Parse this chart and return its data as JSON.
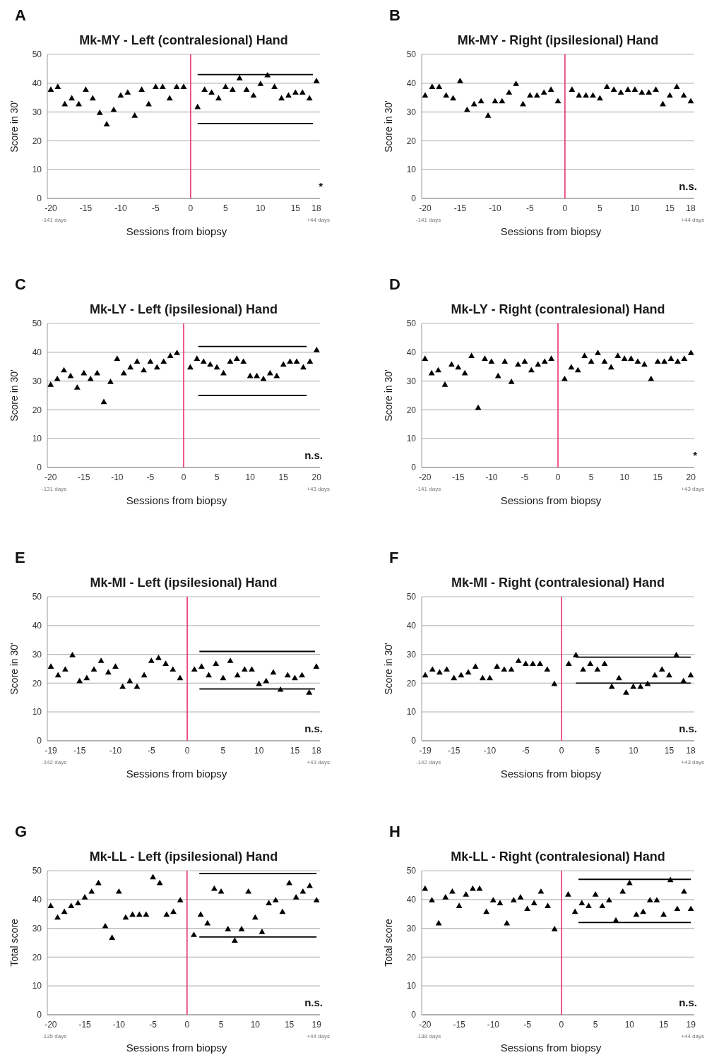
{
  "chart_data": [
    {
      "type": "scatter",
      "title": "Mk-MY - Left (contralesional) Hand",
      "xlabel": "Sessions from biopsy",
      "ylabel": "Score in 30'",
      "annotations": [
        "A",
        "-141 days",
        "+44 days",
        "*"
      ],
      "xlim": [
        -20.5,
        18.5
      ],
      "xticks": [
        -20,
        -15,
        -10,
        -5,
        0,
        5,
        10,
        15,
        18
      ],
      "ylim": [
        0,
        50
      ],
      "yticks": [
        0,
        10,
        20,
        30,
        40,
        50
      ],
      "grid": "y",
      "ref_lines": [
        {
          "axis": "x",
          "value": 0,
          "color": "#e8336d"
        }
      ],
      "series": [
        {
          "marker": "triangle",
          "color": "#000000",
          "x": [
            -20,
            -19,
            -18,
            -17,
            -16,
            -15,
            -14,
            -13,
            -12,
            -11,
            -10,
            -9,
            -8,
            -7,
            -6,
            -5,
            -4,
            -3,
            -2,
            -1,
            1,
            2,
            3,
            4,
            5,
            6,
            7,
            8,
            9,
            10,
            11,
            12,
            13,
            14,
            15,
            16,
            17,
            18
          ],
          "values": [
            38,
            39,
            33,
            35,
            33,
            38,
            35,
            30,
            26,
            31,
            36,
            37,
            29,
            38,
            33,
            39,
            39,
            35,
            39,
            39,
            32,
            38,
            37,
            35,
            39,
            38,
            42,
            38,
            36,
            40,
            43,
            39,
            35,
            36,
            37,
            37,
            35,
            41
          ]
        },
        {
          "type": "line",
          "color": "#000000",
          "x": [
            1,
            17.5
          ],
          "values": [
            43,
            43
          ]
        },
        {
          "type": "line",
          "color": "#000000",
          "x": [
            1,
            17.5
          ],
          "values": [
            26,
            26
          ]
        }
      ]
    },
    {
      "type": "scatter",
      "title": "Mk-MY - Right (ipsilesional) Hand",
      "xlabel": "Sessions from biopsy",
      "ylabel": "Score in 30'",
      "annotations": [
        "B",
        "-141 days",
        "+44 days",
        "n.s."
      ],
      "xlim": [
        -20.5,
        18.5
      ],
      "xticks": [
        -20,
        -15,
        -10,
        -5,
        0,
        5,
        10,
        15,
        18
      ],
      "ylim": [
        0,
        50
      ],
      "yticks": [
        0,
        10,
        20,
        30,
        40,
        50
      ],
      "grid": "y",
      "ref_lines": [
        {
          "axis": "x",
          "value": 0,
          "color": "#e8336d"
        }
      ],
      "series": [
        {
          "marker": "triangle",
          "color": "#000000",
          "x": [
            -20,
            -19,
            -18,
            -17,
            -16,
            -15,
            -14,
            -13,
            -12,
            -11,
            -10,
            -9,
            -8,
            -7,
            -6,
            -5,
            -4,
            -3,
            -2,
            -1,
            1,
            2,
            3,
            4,
            5,
            6,
            7,
            8,
            9,
            10,
            11,
            12,
            13,
            14,
            15,
            16,
            17,
            18
          ],
          "values": [
            36,
            39,
            39,
            36,
            35,
            41,
            31,
            33,
            34,
            29,
            34,
            34,
            37,
            40,
            33,
            36,
            36,
            37,
            38,
            34,
            38,
            36,
            36,
            36,
            35,
            39,
            38,
            37,
            38,
            38,
            37,
            37,
            38,
            33,
            36,
            39,
            36,
            34
          ]
        }
      ]
    },
    {
      "type": "scatter",
      "title": "Mk-LY - Left (ipsilesional) Hand",
      "xlabel": "Sessions from biopsy",
      "ylabel": "Score in 30'",
      "annotations": [
        "C",
        "-131 days",
        "+43 days",
        "n.s."
      ],
      "xlim": [
        -20.5,
        20.5
      ],
      "xticks": [
        -20,
        -15,
        -10,
        -5,
        0,
        5,
        10,
        15,
        20
      ],
      "ylim": [
        0,
        50
      ],
      "yticks": [
        0,
        10,
        20,
        30,
        40,
        50
      ],
      "grid": "y",
      "ref_lines": [
        {
          "axis": "x",
          "value": 0,
          "color": "#e8336d"
        }
      ],
      "series": [
        {
          "marker": "triangle",
          "color": "#000000",
          "x": [
            -20,
            -19,
            -18,
            -17,
            -16,
            -15,
            -14,
            -13,
            -12,
            -11,
            -10,
            -9,
            -8,
            -7,
            -6,
            -5,
            -4,
            -3,
            -2,
            -1,
            1,
            2,
            3,
            4,
            5,
            6,
            7,
            8,
            9,
            10,
            11,
            12,
            13,
            14,
            15,
            16,
            17,
            18,
            19,
            20
          ],
          "values": [
            29,
            31,
            34,
            32,
            28,
            33,
            31,
            33,
            23,
            30,
            38,
            33,
            35,
            37,
            34,
            37,
            35,
            37,
            39,
            40,
            35,
            38,
            37,
            36,
            35,
            33,
            37,
            38,
            37,
            32,
            32,
            31,
            33,
            32,
            36,
            37,
            37,
            35,
            37,
            41
          ]
        },
        {
          "type": "line",
          "color": "#000000",
          "x": [
            2.2,
            18.5
          ],
          "values": [
            42,
            42
          ]
        },
        {
          "type": "line",
          "color": "#000000",
          "x": [
            2.2,
            18.5
          ],
          "values": [
            25,
            25
          ]
        }
      ]
    },
    {
      "type": "scatter",
      "title": "Mk-LY - Right (contralesional) Hand",
      "xlabel": "Sessions from biopsy",
      "ylabel": "Score in 30'",
      "annotations": [
        "D",
        "-141 days",
        "+43 days",
        "*"
      ],
      "xlim": [
        -20.5,
        20.5
      ],
      "xticks": [
        -20,
        -15,
        -10,
        -5,
        0,
        5,
        10,
        15,
        20
      ],
      "ylim": [
        0,
        50
      ],
      "yticks": [
        0,
        10,
        20,
        30,
        40,
        50
      ],
      "grid": "y",
      "ref_lines": [
        {
          "axis": "x",
          "value": 0,
          "color": "#e8336d"
        }
      ],
      "series": [
        {
          "marker": "triangle",
          "color": "#000000",
          "x": [
            -20,
            -19,
            -18,
            -17,
            -16,
            -15,
            -14,
            -13,
            -12,
            -11,
            -10,
            -9,
            -8,
            -7,
            -6,
            -5,
            -4,
            -3,
            -2,
            -1,
            1,
            2,
            3,
            4,
            5,
            6,
            7,
            8,
            9,
            10,
            11,
            12,
            13,
            14,
            15,
            16,
            17,
            18,
            19,
            20
          ],
          "values": [
            38,
            33,
            34,
            29,
            36,
            35,
            33,
            39,
            21,
            38,
            37,
            32,
            37,
            30,
            36,
            37,
            34,
            36,
            37,
            38,
            31,
            35,
            34,
            39,
            37,
            40,
            37,
            35,
            39,
            38,
            38,
            37,
            36,
            31,
            37,
            37,
            38,
            37,
            38,
            40
          ]
        }
      ]
    },
    {
      "type": "scatter",
      "title": "Mk-MI - Left (ipsilesional) Hand",
      "xlabel": "Sessions from biopsy",
      "ylabel": "Score in 30'",
      "annotations": [
        "E",
        "-142 days",
        "+43 days",
        "n.s."
      ],
      "xlim": [
        -19.5,
        18.5
      ],
      "xticks": [
        -19,
        -15,
        -10,
        -5,
        0,
        5,
        10,
        15,
        18
      ],
      "ylim": [
        0,
        50
      ],
      "yticks": [
        0,
        10,
        20,
        30,
        40,
        50
      ],
      "grid": "y",
      "ref_lines": [
        {
          "axis": "x",
          "value": 0,
          "color": "#e8336d"
        }
      ],
      "series": [
        {
          "marker": "triangle",
          "color": "#000000",
          "x": [
            -19,
            -18,
            -17,
            -16,
            -15,
            -14,
            -13,
            -12,
            -11,
            -10,
            -9,
            -8,
            -7,
            -6,
            -5,
            -4,
            -3,
            -2,
            -1,
            1,
            2,
            3,
            4,
            5,
            6,
            7,
            8,
            9,
            10,
            11,
            12,
            13,
            14,
            15,
            16,
            17,
            18
          ],
          "values": [
            26,
            23,
            25,
            30,
            21,
            22,
            25,
            28,
            24,
            26,
            19,
            21,
            19,
            23,
            28,
            29,
            27,
            25,
            22,
            25,
            26,
            23,
            27,
            22,
            28,
            23,
            25,
            25,
            20,
            21,
            24,
            18,
            23,
            22,
            23,
            17,
            26
          ]
        },
        {
          "type": "line",
          "color": "#000000",
          "x": [
            1.7,
            17.8
          ],
          "values": [
            31,
            31
          ]
        },
        {
          "type": "line",
          "color": "#000000",
          "x": [
            1.7,
            17.8
          ],
          "values": [
            18,
            18
          ]
        }
      ]
    },
    {
      "type": "scatter",
      "title": "Mk-MI - Right (contralesional) Hand",
      "xlabel": "Sessions from biopsy",
      "ylabel": "Score in 30'",
      "annotations": [
        "F",
        "-142 days",
        "+43 days",
        "n.s."
      ],
      "xlim": [
        -19.5,
        18.5
      ],
      "xticks": [
        -19,
        -15,
        -10,
        -5,
        0,
        5,
        10,
        15,
        18
      ],
      "ylim": [
        0,
        50
      ],
      "yticks": [
        0,
        10,
        20,
        30,
        40,
        50
      ],
      "grid": "y",
      "ref_lines": [
        {
          "axis": "x",
          "value": 0,
          "color": "#e8336d"
        }
      ],
      "series": [
        {
          "marker": "triangle",
          "color": "#000000",
          "x": [
            -19,
            -18,
            -17,
            -16,
            -15,
            -14,
            -13,
            -12,
            -11,
            -10,
            -9,
            -8,
            -7,
            -6,
            -5,
            -4,
            -3,
            -2,
            -1,
            1,
            2,
            3,
            4,
            5,
            6,
            7,
            8,
            9,
            10,
            11,
            12,
            13,
            14,
            15,
            16,
            17,
            18
          ],
          "values": [
            23,
            25,
            24,
            25,
            22,
            23,
            24,
            26,
            22,
            22,
            26,
            25,
            25,
            28,
            27,
            27,
            27,
            25,
            20,
            27,
            30,
            25,
            27,
            25,
            27,
            19,
            22,
            17,
            19,
            19,
            20,
            23,
            25,
            23,
            30,
            21,
            23
          ]
        },
        {
          "type": "line",
          "color": "#000000",
          "x": [
            2,
            18
          ],
          "values": [
            29,
            29
          ]
        },
        {
          "type": "line",
          "color": "#000000",
          "x": [
            2,
            18
          ],
          "values": [
            20,
            20
          ]
        }
      ]
    },
    {
      "type": "scatter",
      "title": "Mk-LL - Left (ipsilesional) Hand",
      "xlabel": "Sessions from biopsy",
      "ylabel": "Total score",
      "annotations": [
        "G",
        "-135 days",
        "+44 days",
        "n.s."
      ],
      "xlim": [
        -20.5,
        19.5
      ],
      "xticks": [
        -20,
        -15,
        -10,
        -5,
        0,
        5,
        10,
        15,
        19
      ],
      "ylim": [
        0,
        50
      ],
      "yticks": [
        0,
        10,
        20,
        30,
        40,
        50
      ],
      "grid": "y",
      "ref_lines": [
        {
          "axis": "x",
          "value": 0,
          "color": "#e8336d"
        }
      ],
      "series": [
        {
          "marker": "triangle",
          "color": "#000000",
          "x": [
            -20,
            -19,
            -18,
            -17,
            -16,
            -15,
            -14,
            -13,
            -12,
            -11,
            -10,
            -9,
            -8,
            -7,
            -6,
            -5,
            -4,
            -3,
            -2,
            -1,
            1,
            2,
            3,
            4,
            5,
            6,
            7,
            8,
            9,
            10,
            11,
            12,
            13,
            14,
            15,
            16,
            17,
            18,
            19
          ],
          "values": [
            38,
            34,
            36,
            38,
            39,
            41,
            43,
            46,
            31,
            27,
            43,
            34,
            35,
            35,
            35,
            48,
            46,
            35,
            36,
            40,
            28,
            35,
            32,
            44,
            43,
            30,
            26,
            30,
            43,
            34,
            29,
            39,
            40,
            36,
            46,
            41,
            43,
            45,
            40
          ]
        },
        {
          "type": "line",
          "color": "#000000",
          "x": [
            1.8,
            19
          ],
          "values": [
            49,
            49
          ]
        },
        {
          "type": "line",
          "color": "#000000",
          "x": [
            1.8,
            19
          ],
          "values": [
            27,
            27
          ]
        }
      ]
    },
    {
      "type": "scatter",
      "title": "Mk-LL - Right (contralesional) Hand",
      "xlabel": "Sessions from biopsy",
      "ylabel": "Total score",
      "annotations": [
        "H",
        "-138 days",
        "+44 days",
        "n.s."
      ],
      "xlim": [
        -20.5,
        19.5
      ],
      "xticks": [
        -20,
        -15,
        -10,
        -5,
        0,
        5,
        10,
        15,
        19
      ],
      "ylim": [
        0,
        50
      ],
      "yticks": [
        0,
        10,
        20,
        30,
        40,
        50
      ],
      "grid": "y",
      "ref_lines": [
        {
          "axis": "x",
          "value": 0,
          "color": "#e8336d"
        }
      ],
      "series": [
        {
          "marker": "triangle",
          "color": "#000000",
          "x": [
            -20,
            -19,
            -18,
            -17,
            -16,
            -15,
            -14,
            -13,
            -12,
            -11,
            -10,
            -9,
            -8,
            -7,
            -6,
            -5,
            -4,
            -3,
            -2,
            -1,
            1,
            2,
            3,
            4,
            5,
            6,
            7,
            8,
            9,
            10,
            11,
            12,
            13,
            14,
            15,
            16,
            17,
            18,
            19
          ],
          "values": [
            44,
            40,
            32,
            41,
            43,
            38,
            42,
            44,
            44,
            36,
            40,
            39,
            32,
            40,
            41,
            37,
            39,
            43,
            38,
            30,
            42,
            36,
            39,
            38,
            42,
            38,
            40,
            33,
            43,
            46,
            35,
            36,
            40,
            40,
            35,
            47,
            37,
            43,
            37
          ]
        },
        {
          "type": "line",
          "color": "#000000",
          "x": [
            2.5,
            19
          ],
          "values": [
            47,
            47
          ]
        },
        {
          "type": "line",
          "color": "#000000",
          "x": [
            2.5,
            19
          ],
          "values": [
            32,
            32
          ]
        }
      ]
    }
  ]
}
